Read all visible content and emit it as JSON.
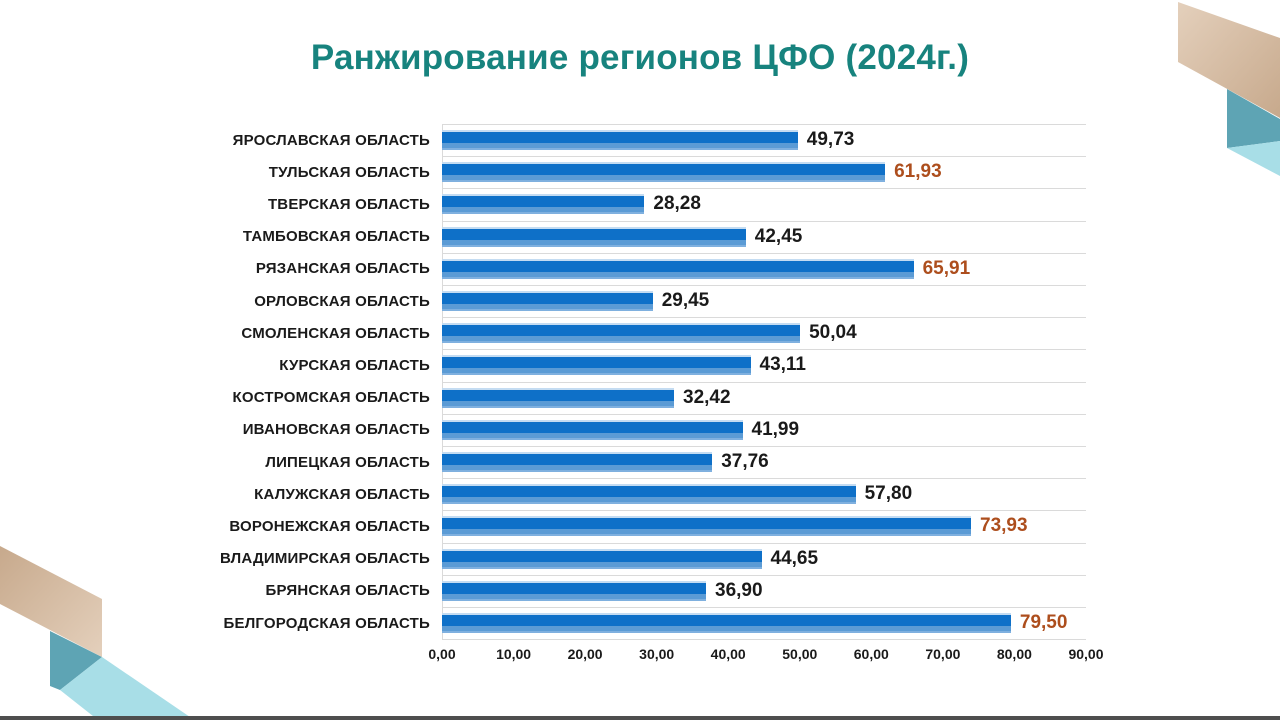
{
  "chart_data": {
    "type": "bar",
    "orientation": "horizontal",
    "title": "Ранжирование регионов ЦФО (2024г.)",
    "categories": [
      "ЯРОСЛАВСКАЯ ОБЛАСТЬ",
      "ТУЛЬСКАЯ ОБЛАСТЬ",
      "ТВЕРСКАЯ ОБЛАСТЬ",
      "ТАМБОВСКАЯ ОБЛАСТЬ",
      "РЯЗАНСКАЯ ОБЛАСТЬ",
      "ОРЛОВСКАЯ ОБЛАСТЬ",
      "СМОЛЕНСКАЯ ОБЛАСТЬ",
      "КУРСКАЯ ОБЛАСТЬ",
      "КОСТРОМСКАЯ ОБЛАСТЬ",
      "ИВАНОВСКАЯ ОБЛАСТЬ",
      "ЛИПЕЦКАЯ ОБЛАСТЬ",
      "КАЛУЖСКАЯ ОБЛАСТЬ",
      "ВОРОНЕЖСКАЯ ОБЛАСТЬ",
      "ВЛАДИМИРСКАЯ ОБЛАСТЬ",
      "БРЯНСКАЯ ОБЛАСТЬ",
      "БЕЛГОРОДСКАЯ ОБЛАСТЬ"
    ],
    "values": [
      49.73,
      61.93,
      28.28,
      42.45,
      65.91,
      29.45,
      50.04,
      43.11,
      32.42,
      41.99,
      37.76,
      57.8,
      73.93,
      44.65,
      36.9,
      79.5
    ],
    "value_labels": [
      "49,73",
      "61,93",
      "28,28",
      "42,45",
      "65,91",
      "29,45",
      "50,04",
      "43,11",
      "32,42",
      "41,99",
      "37,76",
      "57,80",
      "73,93",
      "44,65",
      "36,90",
      "79,50"
    ],
    "highlighted": [
      false,
      true,
      false,
      false,
      true,
      false,
      false,
      false,
      false,
      false,
      false,
      false,
      true,
      false,
      false,
      true
    ],
    "xlim": [
      0,
      90
    ],
    "x_ticks": [
      {
        "value": 0,
        "label": "0,00"
      },
      {
        "value": 10,
        "label": "10,00"
      },
      {
        "value": 20,
        "label": "20,00"
      },
      {
        "value": 30,
        "label": "30,00"
      },
      {
        "value": 40,
        "label": "40,00"
      },
      {
        "value": 50,
        "label": "50,00"
      },
      {
        "value": 60,
        "label": "60,00"
      },
      {
        "value": 70,
        "label": "70,00"
      },
      {
        "value": 80,
        "label": "80,00"
      },
      {
        "value": 90,
        "label": "90,00"
      }
    ],
    "grid": "horizontal row separators, light gray",
    "legend": "none",
    "xlabel": "",
    "ylabel": "",
    "colors": {
      "title": "#17837E",
      "bar_stripe": "#C4DCF2",
      "bar_dark": "#0E70C8",
      "bar_mid": "#5B9BD5",
      "bar_bottom": "#7FB0DF",
      "grid": "#DADADA",
      "value_default": "#1A1A1A",
      "value_highlight": "#AD4E1D"
    }
  },
  "decorations": {
    "ribbon_beige_light": "#E4D0BC",
    "ribbon_beige_dark": "#C7A98C",
    "ribbon_teal": "#5EA4B4",
    "ribbon_cyan": "#A8DEE7",
    "bottom_strip": "#4E4E4E"
  }
}
